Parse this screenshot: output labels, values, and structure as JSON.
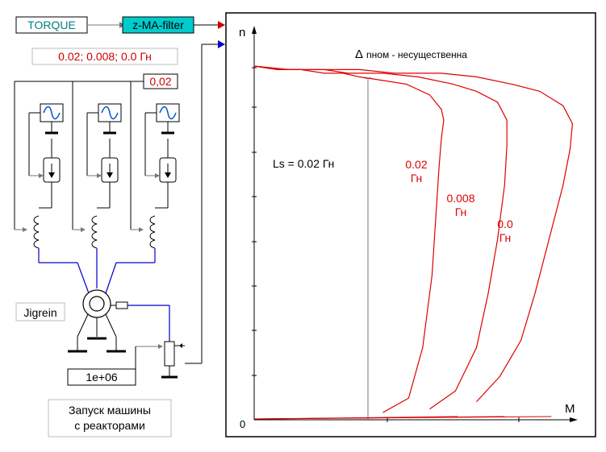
{
  "blocks": {
    "torque": "TORQUE",
    "filter": "z-MA-filter",
    "ls_values": "0.02; 0.008; 0.0 Гн",
    "ls_param": "0,02",
    "machine": "Jigrein",
    "constant": "1e+06",
    "caption_line1": "Запуск машины",
    "caption_line2": "с реакторами"
  },
  "chart_data": {
    "type": "line",
    "ylabel": "n",
    "xlabel": "M",
    "origin_label": "0",
    "annotation_top": "nном - несущественна",
    "annotation_delta": "Δ",
    "annotation_ls": "Ls = 0.02 Гн",
    "series": [
      {
        "name": "0.02 Гн",
        "label_line1": "0.02",
        "label_line2": "Гн",
        "color": "#dd0000",
        "x": [
          0.55,
          0.66,
          0.72,
          0.76,
          0.78,
          0.79,
          0.8,
          0.81,
          0.8,
          0.75,
          0.65,
          0.55,
          0.45,
          0.38,
          0.3,
          0.2,
          0.1,
          0.0
        ],
        "y": [
          0.02,
          0.06,
          0.2,
          0.4,
          0.6,
          0.7,
          0.78,
          0.83,
          0.86,
          0.9,
          0.93,
          0.94,
          0.95,
          0.96,
          0.96,
          0.97,
          0.97,
          0.98
        ]
      },
      {
        "name": "0.008 Гн",
        "label_line1": "0.008",
        "label_line2": "Гн",
        "color": "#dd0000",
        "x": [
          0.75,
          0.86,
          0.95,
          1.0,
          1.04,
          1.07,
          1.08,
          1.08,
          1.04,
          0.95,
          0.85,
          0.7,
          0.55,
          0.4,
          0.3,
          0.2,
          0.1,
          0.0
        ],
        "y": [
          0.03,
          0.08,
          0.2,
          0.35,
          0.5,
          0.65,
          0.76,
          0.83,
          0.88,
          0.91,
          0.93,
          0.95,
          0.96,
          0.96,
          0.97,
          0.97,
          0.97,
          0.98
        ]
      },
      {
        "name": "0.0 Гн",
        "label_line1": "0.0",
        "label_line2": "Гн",
        "color": "#dd0000",
        "x": [
          0.95,
          1.05,
          1.14,
          1.2,
          1.26,
          1.32,
          1.35,
          1.36,
          1.32,
          1.22,
          1.1,
          0.95,
          0.8,
          0.6,
          0.45,
          0.3,
          0.15,
          0.0
        ],
        "y": [
          0.05,
          0.12,
          0.22,
          0.35,
          0.5,
          0.65,
          0.75,
          0.82,
          0.87,
          0.91,
          0.93,
          0.95,
          0.96,
          0.96,
          0.97,
          0.97,
          0.97,
          0.98
        ]
      }
    ]
  }
}
